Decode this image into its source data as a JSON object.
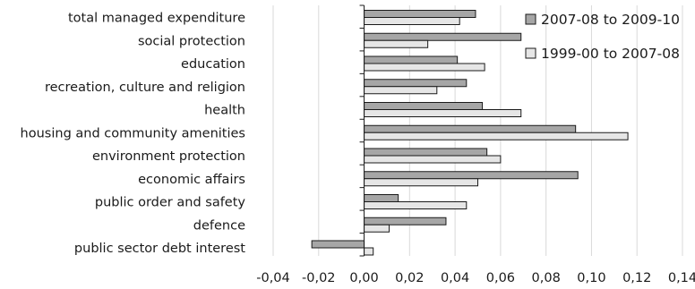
{
  "chart_data": {
    "type": "bar",
    "orientation": "horizontal",
    "categories": [
      "total managed expenditure",
      "social protection",
      "education",
      "recreation, culture and religion",
      "health",
      "housing and community amenities",
      "environment protection",
      "economic affairs",
      "public order and safety",
      "defence",
      "public sector debt interest"
    ],
    "series": [
      {
        "name": "2007-08 to 2009-10",
        "color": "#a6a6a6",
        "values": [
          0.049,
          0.069,
          0.041,
          0.045,
          0.052,
          0.093,
          0.054,
          0.094,
          0.015,
          0.036,
          -0.023
        ]
      },
      {
        "name": "1999-00 to 2007-08",
        "color": "#e6e6e6",
        "values": [
          0.042,
          0.028,
          0.053,
          0.032,
          0.069,
          0.116,
          0.06,
          0.05,
          0.045,
          0.011,
          0.004
        ]
      }
    ],
    "xlim": [
      -0.04,
      0.14
    ],
    "xticks": [
      "-0,04",
      "-0,02",
      "0,00",
      "0,02",
      "0,04",
      "0,06",
      "0,08",
      "0,10",
      "0,12",
      "0,14"
    ],
    "tick_values": [
      -0.04,
      -0.02,
      0,
      0.02,
      0.04,
      0.06,
      0.08,
      0.1,
      0.12,
      0.14
    ],
    "grid": true,
    "legend_position": "top-right",
    "title": "",
    "xlabel": "",
    "ylabel": ""
  }
}
